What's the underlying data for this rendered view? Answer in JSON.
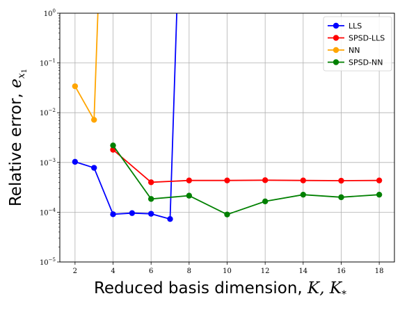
{
  "chart_data": {
    "type": "line",
    "xlabel_text": "Reduced basis dimension, ",
    "xlabel_math": "K, K",
    "xlabel_math_sub": "*",
    "ylabel_text": "Relative error, ",
    "ylabel_math": "e",
    "ylabel_math_sub": "x",
    "ylabel_math_subsub": "1",
    "xlim": [
      1.2,
      18.8
    ],
    "ylim": [
      1e-05,
      1
    ],
    "yscale": "log",
    "grid": true,
    "legend_position": "top-right",
    "xticks": [
      2,
      4,
      6,
      8,
      10,
      12,
      14,
      16,
      18
    ],
    "xtick_labels": [
      "2",
      "4",
      "6",
      "8",
      "10",
      "12",
      "14",
      "16",
      "18"
    ],
    "yticks": [
      1e-05,
      0.0001,
      0.001,
      0.01,
      0.1,
      1
    ],
    "ytick_labels": [
      {
        "base": "10",
        "exp": "−5"
      },
      {
        "base": "10",
        "exp": "−4"
      },
      {
        "base": "10",
        "exp": "−3"
      },
      {
        "base": "10",
        "exp": "−2"
      },
      {
        "base": "10",
        "exp": "−1"
      },
      {
        "base": "10",
        "exp": "0"
      }
    ],
    "series": [
      {
        "name": "LLS",
        "color": "#0000ff",
        "x": [
          2,
          3,
          4,
          5,
          6,
          7,
          7.35
        ],
        "y": [
          0.00103,
          0.00078,
          9.1e-05,
          9.6e-05,
          9.3e-05,
          7.3e-05,
          1.0
        ],
        "markers": [
          true,
          true,
          true,
          true,
          true,
          true,
          false
        ]
      },
      {
        "name": "SPSD-LLS",
        "color": "#ff0000",
        "x": [
          4,
          6,
          8,
          10,
          12,
          14,
          16,
          18
        ],
        "y": [
          0.0018,
          0.0004,
          0.000435,
          0.000435,
          0.00044,
          0.000435,
          0.00043,
          0.000435
        ],
        "markers": [
          true,
          true,
          true,
          true,
          true,
          true,
          true,
          true
        ]
      },
      {
        "name": "NN",
        "color": "#ffa500",
        "x": [
          2,
          3,
          3.2
        ],
        "y": [
          0.034,
          0.0072,
          1.0
        ],
        "markers": [
          true,
          true,
          false
        ]
      },
      {
        "name": "SPSD-NN",
        "color": "#008000",
        "x": [
          4,
          6,
          8,
          10,
          12,
          14,
          16,
          18
        ],
        "y": [
          0.0022,
          0.000185,
          0.000215,
          9e-05,
          0.000165,
          0.000225,
          0.0002,
          0.000225
        ],
        "markers": [
          true,
          true,
          true,
          true,
          true,
          true,
          true,
          true
        ]
      }
    ]
  }
}
